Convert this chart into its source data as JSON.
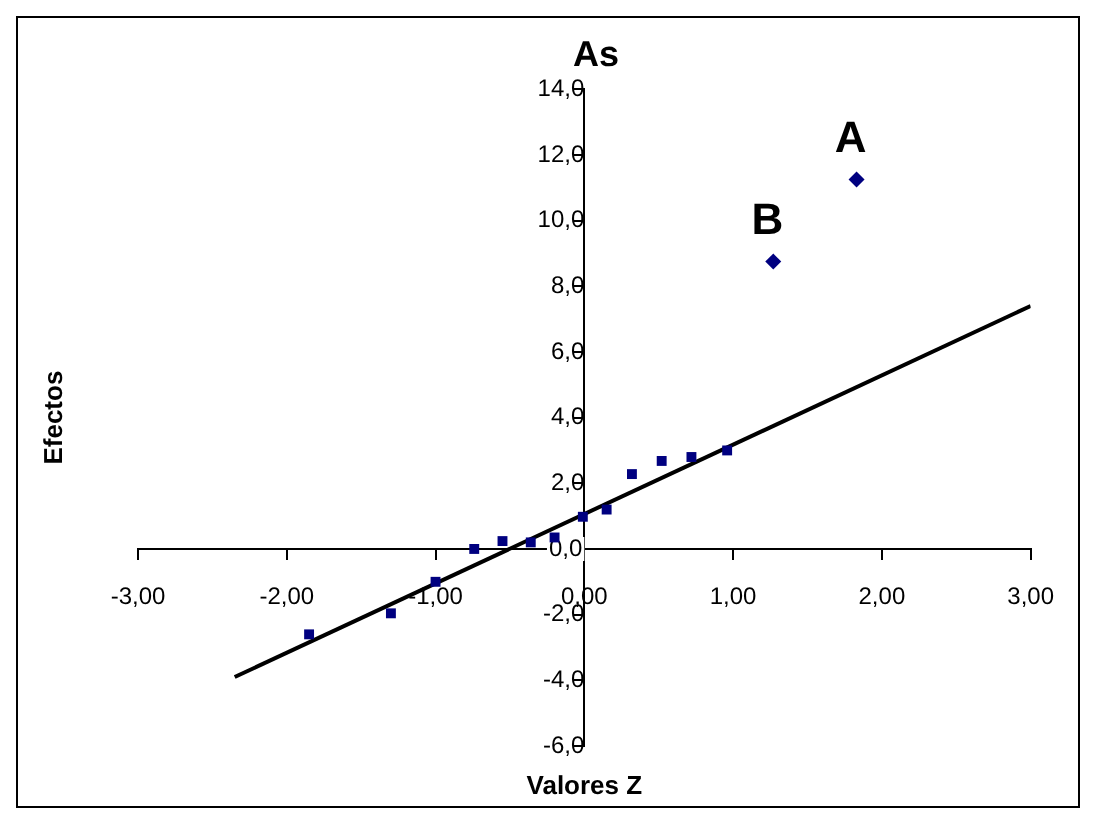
{
  "chart_data": {
    "type": "scatter",
    "title": "As",
    "xlabel": "Valores Z",
    "ylabel": "Efectos",
    "xlim": [
      -3,
      3
    ],
    "ylim": [
      -6,
      14
    ],
    "xticks": [
      {
        "value": -3,
        "label": "-3,00"
      },
      {
        "value": -2,
        "label": "-2,00"
      },
      {
        "value": -1,
        "label": "-1,00"
      },
      {
        "value": 0,
        "label": "0,00"
      },
      {
        "value": 1,
        "label": "1,00"
      },
      {
        "value": 2,
        "label": "2,00"
      },
      {
        "value": 3,
        "label": "3,00"
      }
    ],
    "yticks": [
      {
        "value": -6,
        "label": "-6,0"
      },
      {
        "value": -4,
        "label": "-4,0"
      },
      {
        "value": -2,
        "label": "-2,0"
      },
      {
        "value": 0,
        "label": "0,0"
      },
      {
        "value": 2,
        "label": "2,0"
      },
      {
        "value": 4,
        "label": "4,0"
      },
      {
        "value": 6,
        "label": "6,0"
      },
      {
        "value": 8,
        "label": "8,0"
      },
      {
        "value": 10,
        "label": "10,0"
      },
      {
        "value": 12,
        "label": "12,0"
      },
      {
        "value": 14,
        "label": "14,0"
      }
    ],
    "grid": false,
    "legend": false,
    "series": [
      {
        "type": "scatter",
        "marker": "square",
        "color": "#000080",
        "x": [
          -1.85,
          -1.3,
          -1.0,
          -0.74,
          -0.55,
          -0.36,
          -0.2,
          -0.01,
          0.15,
          0.32,
          0.52,
          0.72,
          0.96
        ],
        "values": [
          -2.6,
          -1.96,
          -1.0,
          0.0,
          0.24,
          0.2,
          0.35,
          0.98,
          1.2,
          2.28,
          2.68,
          2.8,
          3.0
        ]
      },
      {
        "type": "scatter",
        "marker": "diamond",
        "color": "#000080",
        "x": [
          1.27,
          1.83
        ],
        "values": [
          8.75,
          11.25
        ]
      },
      {
        "type": "line",
        "marker": "none",
        "color": "#000000",
        "x": [
          -2.35,
          3
        ],
        "values": [
          -3.9,
          7.4
        ]
      }
    ],
    "annotations": [
      {
        "text": "A",
        "x": 1.83,
        "y": 11.25
      },
      {
        "text": "B",
        "x": 1.27,
        "y": 8.75
      }
    ]
  }
}
